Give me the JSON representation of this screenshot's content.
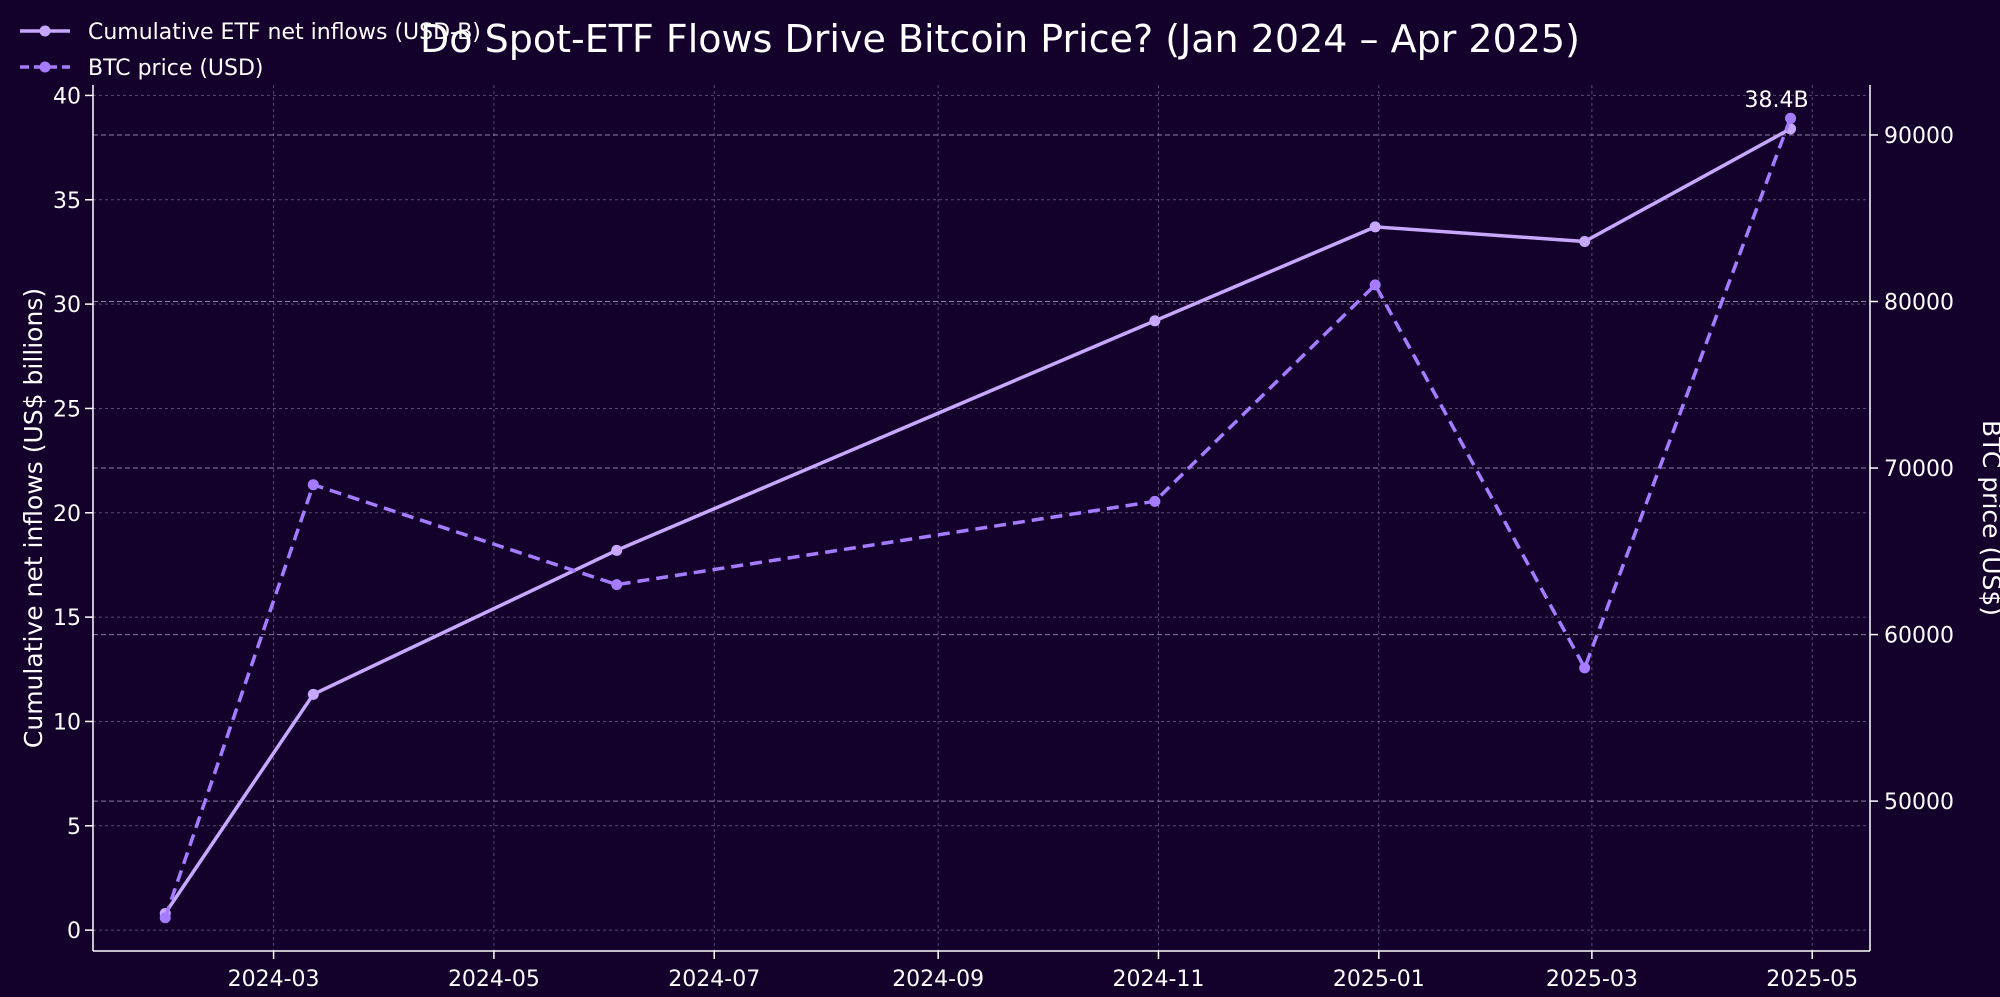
{
  "chart_data": {
    "type": "line",
    "title": "Do Spot-ETF Flows Drive Bitcoin Price? (Jan 2024 – Apr 2025)",
    "ylabel_left": "Cumulative net inflows (US$ billions)",
    "ylabel_right": "BTC price (US$)",
    "xlabel": "",
    "x_tick_labels": [
      "2024-03",
      "2024-05",
      "2024-07",
      "2024-09",
      "2024-11",
      "2025-01",
      "2025-03",
      "2025-05"
    ],
    "x_range": [
      "2024-01-11",
      "2025-05-17"
    ],
    "ylim_left": [
      -1,
      40.5
    ],
    "ylim_right": [
      41000,
      93000
    ],
    "y_ticks_left": [
      0,
      5,
      10,
      15,
      20,
      25,
      30,
      35,
      40
    ],
    "y_ticks_right": [
      50000,
      60000,
      70000,
      80000,
      90000
    ],
    "dates": [
      "2024-01-31",
      "2024-03-12",
      "2024-06-04",
      "2024-10-31",
      "2024-12-31",
      "2025-02-27",
      "2025-04-25"
    ],
    "series": [
      {
        "name": "Cumulative ETF net inflows (USD-B)",
        "axis": "left",
        "style": "solid",
        "color": "#c8a8ff",
        "values": [
          0.8,
          11.3,
          18.2,
          29.2,
          33.7,
          33.0,
          38.4
        ]
      },
      {
        "name": "BTC price (USD)",
        "axis": "right",
        "style": "dashed",
        "color": "#a57cff",
        "values": [
          43000,
          69000,
          63000,
          68000,
          81000,
          58000,
          91000
        ]
      }
    ],
    "annotation": "38.4B",
    "grid": true,
    "legend_position": "top-left",
    "colors": {
      "background": "#13002b",
      "grid": "#7a6a93",
      "axis": "#ffffff",
      "text": "#ffffff"
    }
  }
}
